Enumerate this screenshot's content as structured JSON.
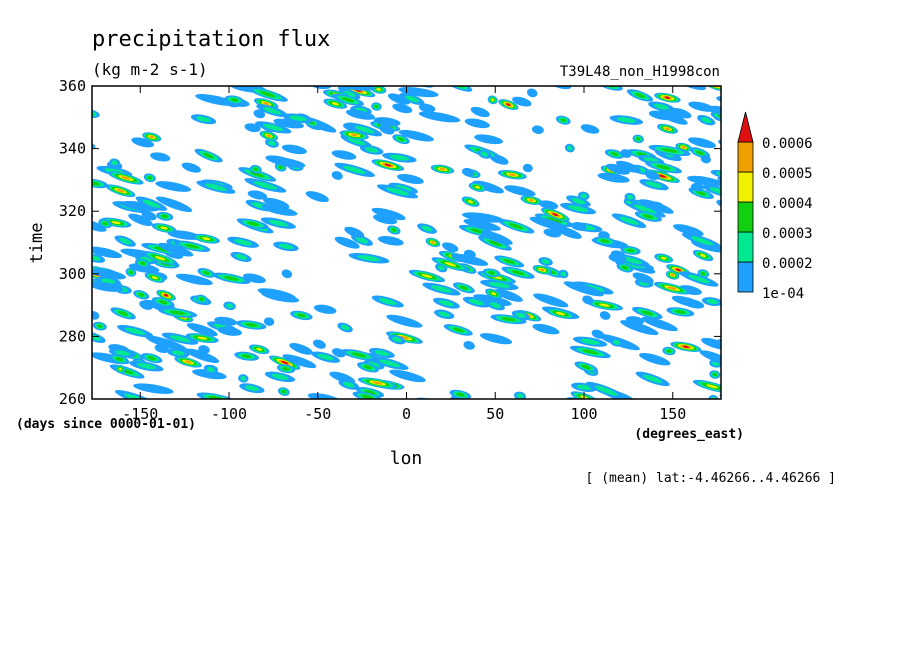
{
  "chart_data": {
    "type": "heatmap",
    "title": "precipitation flux",
    "units": "(kg m-2 s-1)",
    "experiment": "T39L48_non_H1998con",
    "xlabel": "lon",
    "xunits": "(degrees_east)",
    "ylabel": "time",
    "yunits": "(days since 0000-01-01)",
    "xlim": [
      -177.1875,
      177.1875
    ],
    "ylim": [
      260,
      360
    ],
    "x_ticks": [
      -150,
      -100,
      -50,
      0,
      50,
      100,
      150
    ],
    "x_tick_labels": [
      "-150",
      "-100",
      "-50",
      "0",
      "50",
      "100",
      "150"
    ],
    "y_ticks": [
      260,
      280,
      300,
      320,
      340,
      360
    ],
    "y_tick_labels": [
      "260",
      "280",
      "300",
      "320",
      "340",
      "360"
    ],
    "annotation": "[ (mean) lat:-4.46266..4.46266 ]",
    "grid": false,
    "legend_position": "right",
    "colorbar": {
      "levels": [
        0.0001,
        0.0002,
        0.0003,
        0.0004,
        0.0005,
        0.0006
      ],
      "labels": [
        "1e-04",
        "0.0002",
        "0.0003",
        "0.0004",
        "0.0005",
        "0.0006"
      ],
      "colors": [
        "#1ea0ff",
        "#00e890",
        "#10d010",
        "#f0f000",
        "#f0a000",
        "#e01010"
      ]
    },
    "background_color": "#ffffff"
  }
}
